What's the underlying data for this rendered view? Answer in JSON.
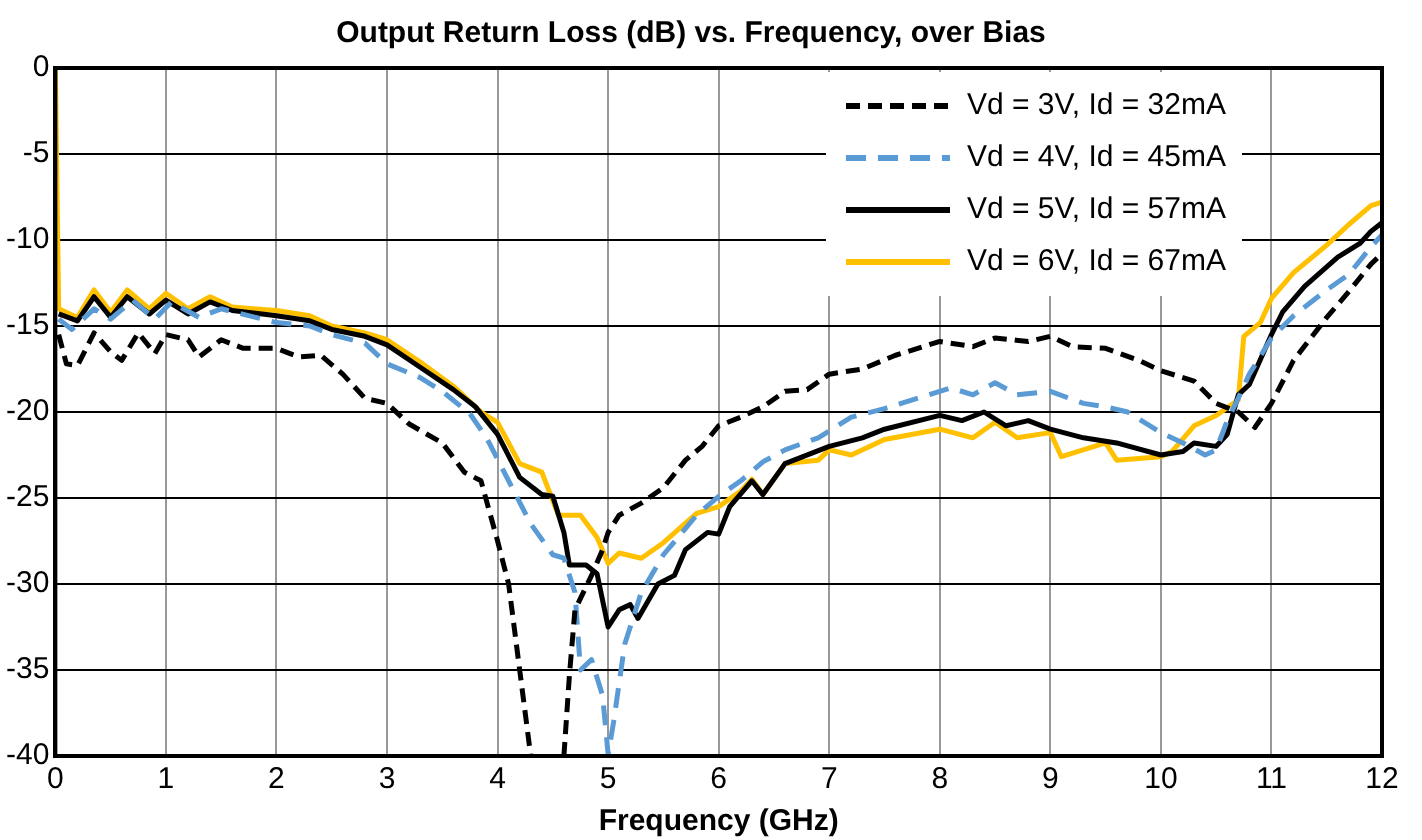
{
  "chart_data": {
    "type": "line",
    "title": "Output Return Loss (dB) vs. Frequency, over Bias",
    "xlabel": "Frequency (GHz)",
    "xlim": [
      0,
      12
    ],
    "xticks": [
      0,
      1,
      2,
      3,
      4,
      5,
      6,
      7,
      8,
      9,
      10,
      11,
      12
    ],
    "ylim": [
      -40,
      0
    ],
    "yticks": [
      -40,
      -35,
      -30,
      -25,
      -20,
      -15,
      -10,
      -5,
      0
    ],
    "grid": true,
    "legend": "top right",
    "marker": "none",
    "series": [
      {
        "name": "Vd = 3V, Id = 32mA",
        "color": "#000000",
        "line_style": "dashed",
        "x": [
          0.03,
          0.1,
          0.2,
          0.35,
          0.5,
          0.6,
          0.75,
          0.9,
          1.0,
          1.2,
          1.3,
          1.5,
          1.7,
          2.0,
          2.2,
          2.4,
          2.6,
          2.8,
          3.0,
          3.2,
          3.5,
          3.7,
          3.85,
          4.0,
          4.1,
          4.2,
          4.3,
          4.45,
          4.6,
          4.65,
          4.7,
          4.85,
          4.95,
          5.0,
          5.1,
          5.3,
          5.5,
          5.7,
          5.85,
          6.0,
          6.2,
          6.4,
          6.6,
          6.8,
          7.0,
          7.3,
          7.6,
          8.0,
          8.3,
          8.5,
          8.8,
          9.0,
          9.2,
          9.5,
          9.8,
          10.0,
          10.3,
          10.5,
          10.7,
          10.85,
          11.0,
          11.2,
          11.5,
          11.7,
          11.9,
          12.0
        ],
        "values": [
          -15.5,
          -17.2,
          -17.3,
          -15.4,
          -16.5,
          -17,
          -15.4,
          -16.6,
          -15.5,
          -15.8,
          -16.8,
          -15.8,
          -16.3,
          -16.3,
          -16.8,
          -16.7,
          -17.8,
          -19.2,
          -19.5,
          -20.7,
          -21.8,
          -23.5,
          -24,
          -27.5,
          -30,
          -35,
          -40,
          null,
          -40,
          -35.3,
          -31.5,
          -29.5,
          -28,
          -27,
          -26,
          -25.3,
          -24.4,
          -22.8,
          -22,
          -20.8,
          -20.3,
          -19.7,
          -18.8,
          -18.7,
          -17.8,
          -17.5,
          -16.7,
          -15.9,
          -16.2,
          -15.7,
          -15.9,
          -15.6,
          -16.2,
          -16.3,
          -17,
          -17.6,
          -18.2,
          -19.5,
          -20,
          -20.9,
          -19.5,
          -17,
          -14.5,
          -13,
          -11.4,
          -10.8
        ]
      },
      {
        "name": "Vd = 4V, Id = 45mA",
        "color": "#5b9bd5",
        "line_style": "dashed",
        "x": [
          0.03,
          0.15,
          0.35,
          0.5,
          0.7,
          0.9,
          1.05,
          1.3,
          1.5,
          2.0,
          2.3,
          2.5,
          2.8,
          3.0,
          3.3,
          3.5,
          3.75,
          3.9,
          4.1,
          4.3,
          4.5,
          4.6,
          4.7,
          4.75,
          4.85,
          4.95,
          5.0,
          5.05,
          5.15,
          5.3,
          5.5,
          5.8,
          6.0,
          6.2,
          6.4,
          6.6,
          6.9,
          7.2,
          7.5,
          7.9,
          8.1,
          8.3,
          8.5,
          8.7,
          9.0,
          9.3,
          9.5,
          9.7,
          10.0,
          10.2,
          10.4,
          10.5,
          10.6,
          10.7,
          10.8,
          11.0,
          11.2,
          11.5,
          11.7,
          11.9,
          12.0
        ],
        "values": [
          -14.6,
          -15.2,
          -14,
          -14.6,
          -13.5,
          -14.6,
          -13.6,
          -14.5,
          -14,
          -14.8,
          -15,
          -15.5,
          -16,
          -17.2,
          -18,
          -18.8,
          -20.1,
          -21.5,
          -24,
          -26.5,
          -28.3,
          -28.5,
          -30.5,
          -35,
          -34.4,
          -36.5,
          -39.9,
          -38,
          -33.5,
          -30.5,
          -28.3,
          -26,
          -24.9,
          -24,
          -22.9,
          -22.2,
          -21.5,
          -20.3,
          -19.8,
          -19,
          -18.6,
          -19,
          -18.3,
          -19,
          -18.8,
          -19.5,
          -19.7,
          -20,
          -21.2,
          -21.8,
          -22.5,
          -22.2,
          -20.5,
          -19.2,
          -17.8,
          -15.7,
          -14.4,
          -12.9,
          -12,
          -10.4,
          -9.7
        ]
      },
      {
        "name": "Vd = 5V, Id = 57mA",
        "color": "#000000",
        "line_style": "solid",
        "x": [
          0.03,
          0.2,
          0.35,
          0.5,
          0.65,
          0.85,
          1.0,
          1.2,
          1.4,
          1.6,
          2.0,
          2.3,
          2.5,
          2.8,
          3.0,
          3.3,
          3.6,
          3.8,
          4.0,
          4.2,
          4.4,
          4.5,
          4.6,
          4.65,
          4.8,
          4.9,
          5.0,
          5.1,
          5.2,
          5.27,
          5.45,
          5.6,
          5.7,
          5.9,
          6.0,
          6.1,
          6.3,
          6.4,
          6.6,
          7.0,
          7.3,
          7.5,
          8.0,
          8.2,
          8.4,
          8.6,
          8.8,
          9.0,
          9.3,
          9.6,
          10.0,
          10.2,
          10.3,
          10.5,
          10.6,
          10.7,
          10.8,
          11.0,
          11.1,
          11.3,
          11.6,
          11.8,
          11.9,
          12.0
        ],
        "values": [
          -14.3,
          -14.7,
          -13.3,
          -14.5,
          -13.3,
          -14.3,
          -13.5,
          -14.3,
          -13.6,
          -14.1,
          -14.4,
          -14.7,
          -15.2,
          -15.6,
          -16.1,
          -17.4,
          -18.7,
          -19.7,
          -21.3,
          -23.8,
          -24.8,
          -24.9,
          -27,
          -28.9,
          -28.9,
          -29.4,
          -32.5,
          -31.5,
          -31.2,
          -32,
          -30,
          -29.5,
          -28,
          -27,
          -27.1,
          -25.5,
          -24,
          -24.8,
          -23,
          -22,
          -21.5,
          -21,
          -20.2,
          -20.5,
          -20,
          -20.8,
          -20.5,
          -21,
          -21.5,
          -21.8,
          -22.5,
          -22.3,
          -21.8,
          -22,
          -21.3,
          -19,
          -18.4,
          -15.5,
          -14.2,
          -12.7,
          -11,
          -10.2,
          -9.5,
          -9
        ]
      },
      {
        "name": "Vd = 6V, Id = 67mA",
        "color": "#ffc000",
        "line_style": "solid",
        "x": [
          0,
          0.03,
          0.2,
          0.35,
          0.5,
          0.65,
          0.85,
          1.0,
          1.2,
          1.4,
          1.6,
          2.0,
          2.3,
          2.5,
          2.8,
          3.0,
          3.3,
          3.6,
          3.85,
          4.0,
          4.2,
          4.4,
          4.55,
          4.75,
          4.9,
          5.0,
          5.1,
          5.3,
          5.5,
          5.8,
          6.0,
          6.2,
          6.3,
          6.4,
          6.6,
          6.9,
          7.0,
          7.2,
          7.5,
          8.0,
          8.3,
          8.5,
          8.7,
          9.0,
          9.1,
          9.5,
          9.6,
          10.0,
          10.1,
          10.3,
          10.5,
          10.7,
          10.75,
          10.9,
          11.0,
          11.2,
          11.5,
          11.7,
          11.9,
          12.0
        ],
        "values": [
          0,
          -14,
          -14.5,
          -12.9,
          -14.2,
          -12.9,
          -14,
          -13.1,
          -14,
          -13.3,
          -13.9,
          -14.1,
          -14.4,
          -15,
          -15.4,
          -15.8,
          -17.1,
          -18.5,
          -20,
          -20.6,
          -23,
          -23.5,
          -26,
          -26,
          -27.3,
          -28.8,
          -28.2,
          -28.5,
          -27.6,
          -25.9,
          -25.5,
          -24.6,
          -23.9,
          -24.8,
          -23,
          -22.8,
          -22.2,
          -22.5,
          -21.6,
          -21,
          -21.5,
          -20.6,
          -21.5,
          -21.2,
          -22.6,
          -21.8,
          -22.8,
          -22.6,
          -22.3,
          -20.8,
          -20.2,
          -19.3,
          -15.6,
          -14.8,
          -13.4,
          -11.9,
          -10.3,
          -9.1,
          -8,
          -7.8
        ]
      }
    ]
  }
}
